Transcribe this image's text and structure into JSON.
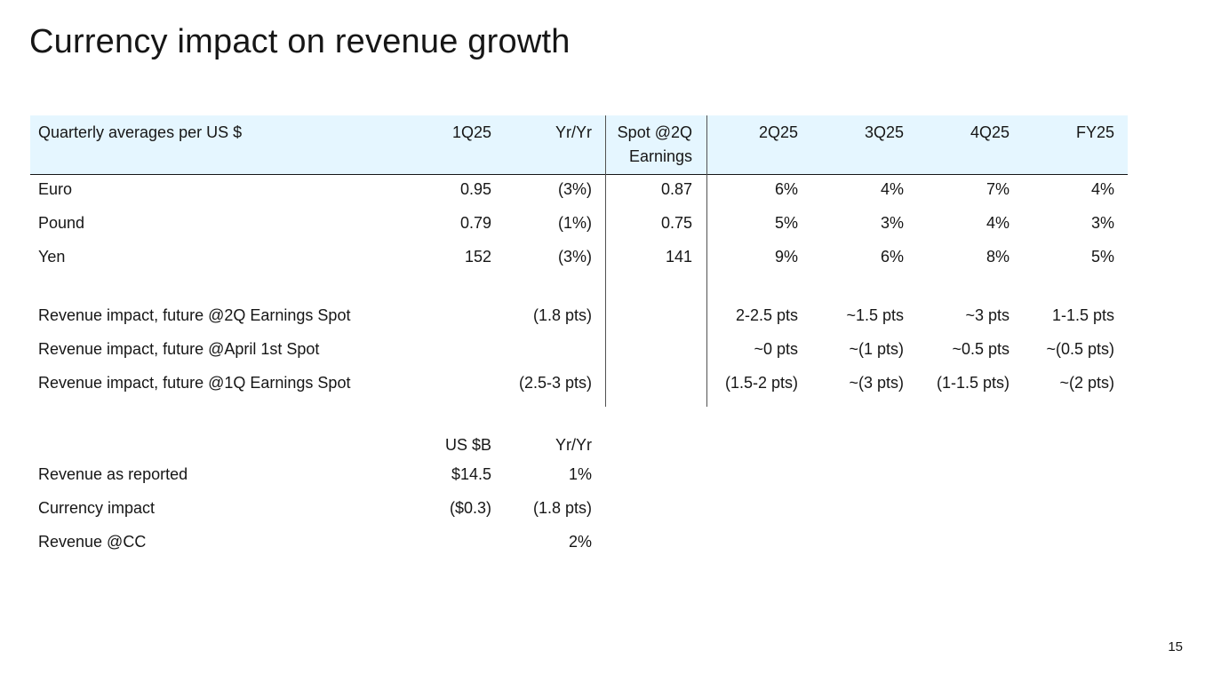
{
  "title": "Currency impact on revenue growth",
  "page_number": "15",
  "rates_table": {
    "headers": {
      "label": "Quarterly averages per US $",
      "q1": "1Q25",
      "yy": "Yr/Yr",
      "spot_line1": "Spot @2Q",
      "spot_line2": "Earnings",
      "q2": "2Q25",
      "q3": "3Q25",
      "q4": "4Q25",
      "fy": "FY25"
    },
    "currencies": [
      {
        "label": "Euro",
        "q1": "0.95",
        "yy": "(3%)",
        "spot": "0.87",
        "q2": "6%",
        "q3": "4%",
        "q4": "7%",
        "fy": "4%"
      },
      {
        "label": "Pound",
        "q1": "0.79",
        "yy": "(1%)",
        "spot": "0.75",
        "q2": "5%",
        "q3": "3%",
        "q4": "4%",
        "fy": "3%"
      },
      {
        "label": "Yen",
        "q1": "152",
        "yy": "(3%)",
        "spot": "141",
        "q2": "9%",
        "q3": "6%",
        "q4": "8%",
        "fy": "5%"
      }
    ],
    "impacts": [
      {
        "label": "Revenue impact, future @2Q Earnings Spot",
        "yy": "(1.8 pts)",
        "q2": "2-2.5 pts",
        "q3": "~1.5 pts",
        "q4": "~3 pts",
        "fy": "1-1.5 pts"
      },
      {
        "label": "Revenue impact, future @April 1st Spot",
        "yy": "",
        "q2": "~0 pts",
        "q3": "~(1 pts)",
        "q4": "~0.5 pts",
        "fy": "~(0.5 pts)"
      },
      {
        "label": "Revenue impact, future @1Q Earnings Spot",
        "yy": "(2.5-3 pts)",
        "q2": "(1.5-2 pts)",
        "q3": "~(3 pts)",
        "q4": "(1-1.5 pts)",
        "fy": "~(2 pts)"
      }
    ]
  },
  "revenue_table": {
    "headers": {
      "usd": "US $B",
      "yy": "Yr/Yr"
    },
    "rows": [
      {
        "label": "Revenue as reported",
        "usd": "$14.5",
        "yy": "1%"
      },
      {
        "label": "Currency impact",
        "usd": "($0.3)",
        "yy": "(1.8 pts)"
      },
      {
        "label": "Revenue @CC",
        "usd": "",
        "yy": "2%"
      }
    ]
  }
}
